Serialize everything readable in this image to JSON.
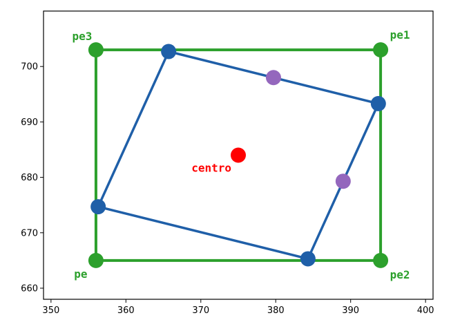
{
  "chart_data": {
    "type": "scatter",
    "title": "",
    "xlabel": "",
    "ylabel": "",
    "xlim": [
      349,
      401
    ],
    "ylim": [
      658,
      710
    ],
    "x_ticks": [
      350,
      360,
      370,
      380,
      390,
      400
    ],
    "y_ticks": [
      660,
      670,
      680,
      690,
      700
    ],
    "grid": false,
    "colors": {
      "green": "#2ca02c",
      "blue": "#1f5fa8",
      "purple": "#9467bd",
      "red": "#ff0000"
    },
    "rectangle": {
      "color": "#2ca02c",
      "points": [
        {
          "name": "pe",
          "x": 356,
          "y": 665
        },
        {
          "name": "pe2",
          "x": 394,
          "y": 665
        },
        {
          "name": "pe1",
          "x": 394,
          "y": 703
        },
        {
          "name": "pe3",
          "x": 356,
          "y": 703
        }
      ]
    },
    "rotated_polygon": {
      "color": "#1f5fa8",
      "points": [
        {
          "x": 365.7,
          "y": 702.7
        },
        {
          "x": 393.7,
          "y": 693.3
        },
        {
          "x": 384.3,
          "y": 665.3
        },
        {
          "x": 356.3,
          "y": 674.7
        }
      ]
    },
    "midpoints": {
      "color": "#9467bd",
      "points": [
        {
          "x": 379.7,
          "y": 698.0
        },
        {
          "x": 389.0,
          "y": 679.3
        }
      ]
    },
    "center": {
      "name": "centro",
      "x": 375,
      "y": 684,
      "color": "#ff0000"
    }
  }
}
